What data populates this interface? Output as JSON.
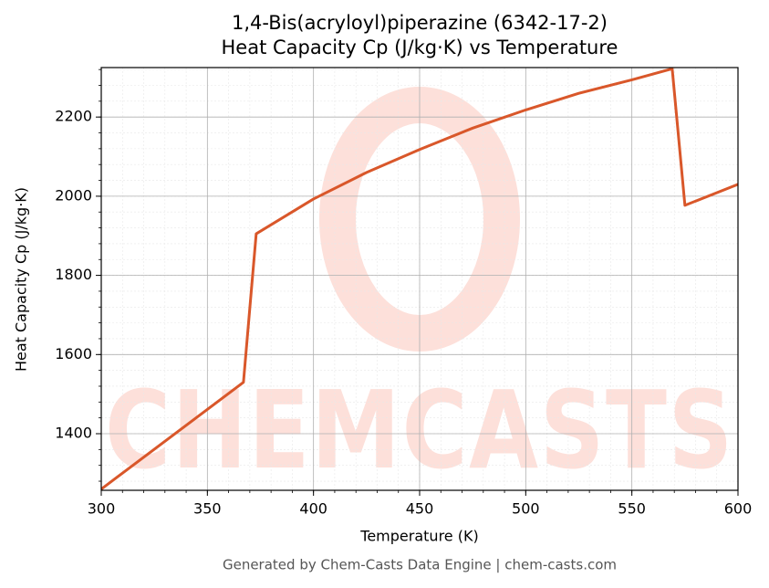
{
  "chart_data": {
    "type": "line",
    "title": "1,4-Bis(acryloyl)piperazine (6342-17-2)",
    "subtitle": "Heat Capacity Cp (J/kg·K) vs Temperature",
    "x_label": "Temperature (K)",
    "y_label": "Heat Capacity Cp (J/kg·K)",
    "footer": "Generated by Chem-Casts Data Engine | chem-casts.com",
    "watermark": "CHEMCASTS",
    "x": [
      300,
      367,
      373,
      400,
      425,
      450,
      475,
      500,
      525,
      550,
      569,
      575,
      600
    ],
    "series": [
      {
        "name": "Cp",
        "color": "#d9572a",
        "values": [
          1260,
          1530,
          1905,
          1993,
          2060,
          2118,
          2172,
          2218,
          2260,
          2294,
          2322,
          1977,
          2030
        ]
      }
    ],
    "xlim": [
      300,
      600
    ],
    "ylim": [
      1257,
      2325
    ],
    "xticks": [
      300,
      350,
      400,
      450,
      500,
      550,
      600
    ],
    "yticks": [
      1400,
      1600,
      1800,
      2000,
      2200
    ],
    "grid": true
  }
}
